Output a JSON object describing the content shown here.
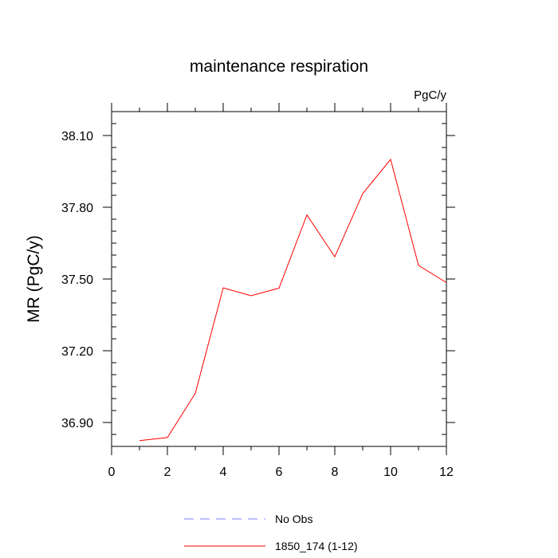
{
  "chart_data": {
    "type": "line",
    "title": "maintenance respiration",
    "units_label": "PgC/y",
    "ylabel": "MR  (PgC/y)",
    "xlabel": "",
    "xlim": [
      0,
      12
    ],
    "ylim": [
      36.8,
      38.2
    ],
    "x_ticks": [
      0,
      2,
      4,
      6,
      8,
      10,
      12
    ],
    "x_tick_labels": [
      "0",
      "2",
      "4",
      "6",
      "8",
      "10",
      "12"
    ],
    "y_ticks": [
      36.9,
      37.2,
      37.5,
      37.8,
      38.1
    ],
    "y_tick_labels": [
      "36.90",
      "37.20",
      "37.50",
      "37.80",
      "38.10"
    ],
    "grid": false,
    "legend_position": "bottom",
    "series": [
      {
        "name": "No Obs",
        "color": "#7f7fff",
        "dash": "dashed",
        "x": [],
        "y": []
      },
      {
        "name": "1850_174 (1-12)",
        "color": "#ff0000",
        "dash": "solid",
        "x": [
          1,
          2,
          3,
          4,
          5,
          6,
          7,
          8,
          9,
          10,
          11,
          12
        ],
        "y": [
          36.824,
          36.837,
          37.022,
          37.463,
          37.43,
          37.462,
          37.768,
          37.593,
          37.857,
          38.0,
          37.557,
          37.485
        ]
      }
    ]
  }
}
